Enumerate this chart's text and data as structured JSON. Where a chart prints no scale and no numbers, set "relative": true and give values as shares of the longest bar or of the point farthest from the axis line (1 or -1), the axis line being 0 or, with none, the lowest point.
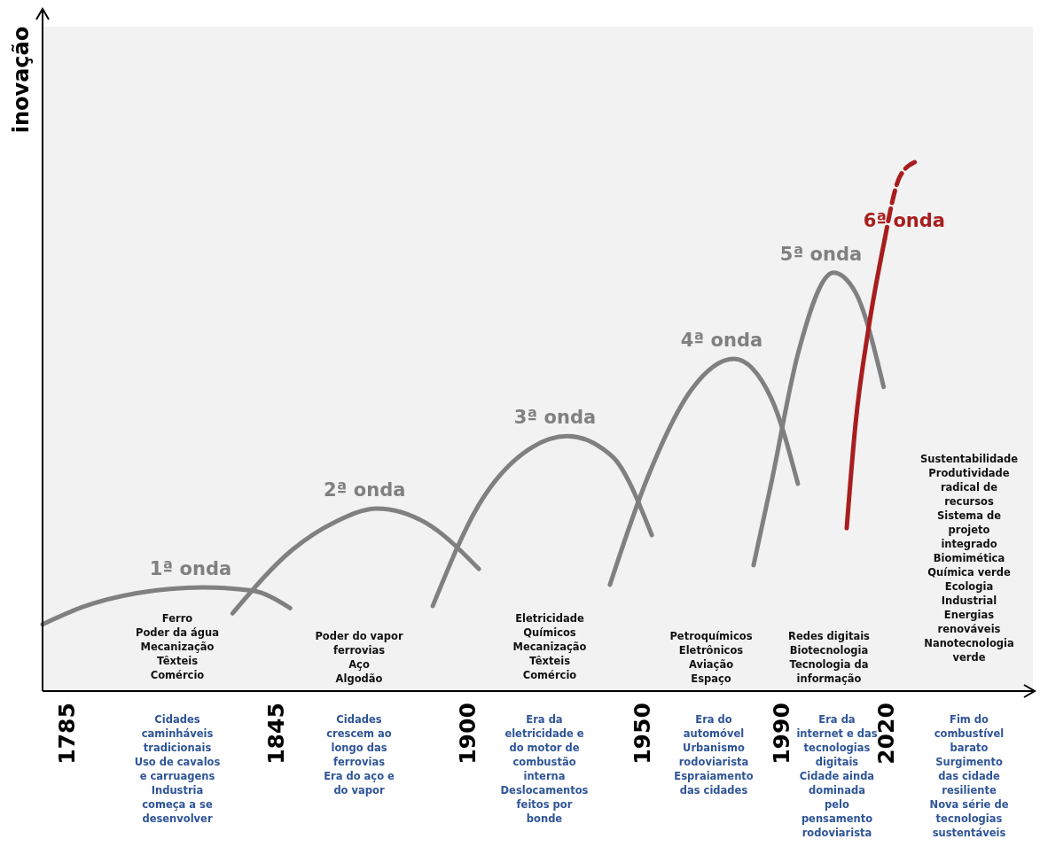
{
  "chart_data": {
    "type": "line",
    "relative": true,
    "ylabel": "inovação",
    "xlim": [
      1778,
      2062
    ],
    "xticks": [
      1785,
      1845,
      1900,
      1950,
      1990,
      2020
    ],
    "series": [
      {
        "name": "1ª onda",
        "color": "#808080",
        "x": [
          1778,
          1790,
          1805,
          1824,
          1838,
          1849
        ],
        "values": [
          0.126,
          0.16,
          0.185,
          0.196,
          0.19,
          0.157
        ]
      },
      {
        "name": "2ª onda",
        "color": "#808080",
        "x": [
          1832.5,
          1849.8,
          1862,
          1873.9,
          1887.9,
          1903.1
        ],
        "values": [
          0.147,
          0.268,
          0.32,
          0.345,
          0.318,
          0.231
        ]
      },
      {
        "name": "3ª onda",
        "color": "#808080",
        "x": [
          1889.9,
          1903.1,
          1918.4,
          1928.5,
          1941.3,
          1952.7
        ],
        "values": [
          0.161,
          0.352,
          0.461,
          0.482,
          0.444,
          0.295
        ]
      },
      {
        "name": "4ª onda",
        "color": "#808080",
        "x": [
          1940.7,
          1951.4,
          1964.1,
          1976.3,
          1987,
          1994.6
        ],
        "values": [
          0.201,
          0.402,
          0.57,
          0.628,
          0.553,
          0.392
        ]
      },
      {
        "name": "5ª onda",
        "color": "#808080",
        "x": [
          1981.9,
          1987,
          1994.6,
          2004.8,
          2011.1,
          2019.2
        ],
        "values": [
          0.238,
          0.394,
          0.637,
          0.791,
          0.754,
          0.575
        ]
      },
      {
        "name": "6ª onda",
        "color": "#a81e1e",
        "x": [
          2008.6,
          2011.1,
          2014.9,
          2019.5
        ],
        "values": [
          0.308,
          0.503,
          0.687,
          0.854
        ]
      },
      {
        "color": "#a81e1e",
        "line_style": "dashed",
        "x": [
          2019.5,
          2023.8,
          2028.1
        ],
        "values": [
          0.854,
          0.972,
          1.0
        ]
      }
    ],
    "annotations": [
      "Ferro\nPoder da água\nMecanização\nTêxteis\nComércio",
      "Poder do vapor\nferrovias\nAço\nAlgodão",
      "Eletricidade\nQuímicos\nMecanização\nTêxteis\nComércio",
      "Petroquímicos\nEletrônicos\nAviação\nEspaço",
      "Redes digitais\nBiotecnologia\nTecnologia da\ninformação",
      "Sustentabilidade\nProdutividade\nradical de\nrecursos\nSistema de\nprojeto\nintegrado\nBiomimética\nQuímica verde\nEcologia\nIndustrial\nEnergias\nrenováveis\nNanotecnologia\nverde",
      "Cidades\ncaminháveis\ntradicionais\nUso de cavalos\ne carruagens\nIndustria\ncomeça a se\ndesenvolver",
      "Cidades\ncrescem ao\nlongo das\nferrovias\nEra do aço e\ndo vapor",
      "Era da\neletricidade e\ndo motor de\ncombustão\ninterna\nDeslocamentos\nfeitos por\nbonde",
      "Era do\nautomóvel\nUrbanismo\nrodoviarista\nEspraiamento\ndas cidades",
      "Era da\ninternet e das\ntecnologias\ndigitais\nCidade ainda\ndominada\npelo\npensamento\nrodoviarista",
      "Fim do\ncombustível\nbarato\nSurgimento\ndas cidade\nresiliente\nNova série de\ntecnologias\nsustentáveis"
    ]
  }
}
